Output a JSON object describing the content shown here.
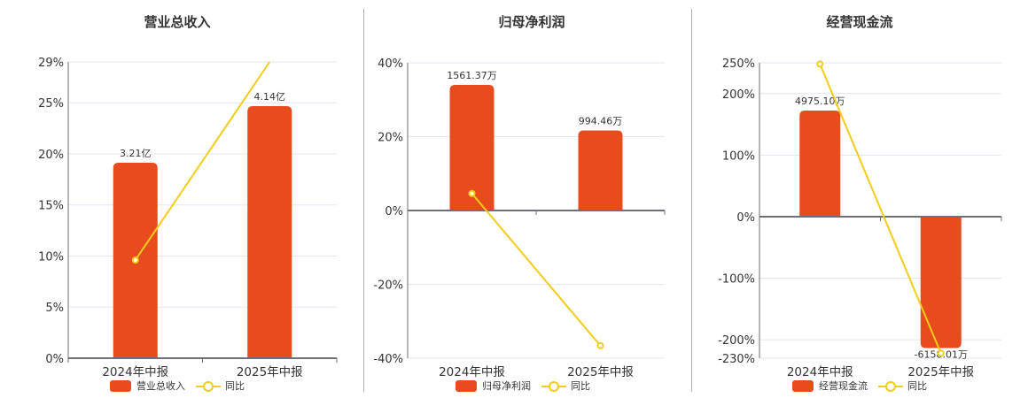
{
  "colors": {
    "bar": "#e84c1c",
    "line": "#f3cc1a",
    "grid": "#e0e6f0",
    "axis": "#6e7079",
    "divider": "#b0b0b0"
  },
  "legend": {
    "line_label": "同比"
  },
  "chart_data": [
    {
      "type": "bar+line",
      "title": "营业总收入",
      "categories": [
        "2024年中报",
        "2025年中报"
      ],
      "series": [
        {
          "name": "营业总收入",
          "type": "bar",
          "values": [
            3.21,
            4.14
          ],
          "unit": "亿",
          "labels": [
            "3.21亿",
            "4.14亿"
          ]
        },
        {
          "name": "同比",
          "type": "line",
          "values": [
            9.6,
            29.0
          ],
          "unit": "%"
        }
      ],
      "yaxis_ticks": [
        "0%",
        "5%",
        "10%",
        "15%",
        "20%",
        "25%",
        "29%"
      ],
      "ylim": [
        0,
        29
      ],
      "legend_position": "bottom",
      "grid": true
    },
    {
      "type": "bar+line",
      "title": "归母净利润",
      "categories": [
        "2024年中报",
        "2025年中报"
      ],
      "series": [
        {
          "name": "归母净利润",
          "type": "bar",
          "values": [
            1561.37,
            994.46
          ],
          "unit": "万",
          "labels": [
            "1561.37万",
            "994.46万"
          ]
        },
        {
          "name": "同比",
          "type": "line",
          "values": [
            4.6,
            -36.6
          ],
          "unit": "%"
        }
      ],
      "yaxis_ticks": [
        "-40%",
        "-20%",
        "0%",
        "20%",
        "40%"
      ],
      "ylim": [
        -40,
        40
      ],
      "legend_position": "bottom",
      "grid": true
    },
    {
      "type": "bar+line",
      "title": "经营现金流",
      "categories": [
        "2024年中报",
        "2025年中报"
      ],
      "series": [
        {
          "name": "经营现金流",
          "type": "bar",
          "values": [
            4975.1,
            -6158.01
          ],
          "unit": "万",
          "labels": [
            "4975.10万",
            "-6158.01万"
          ]
        },
        {
          "name": "同比",
          "type": "line",
          "values": [
            248,
            -222
          ],
          "unit": "%"
        }
      ],
      "yaxis_ticks": [
        "-230%",
        "-200%",
        "-100%",
        "0%",
        "100%",
        "200%",
        "250%"
      ],
      "ylim": [
        -230,
        250
      ],
      "legend_position": "bottom",
      "grid": true
    }
  ]
}
